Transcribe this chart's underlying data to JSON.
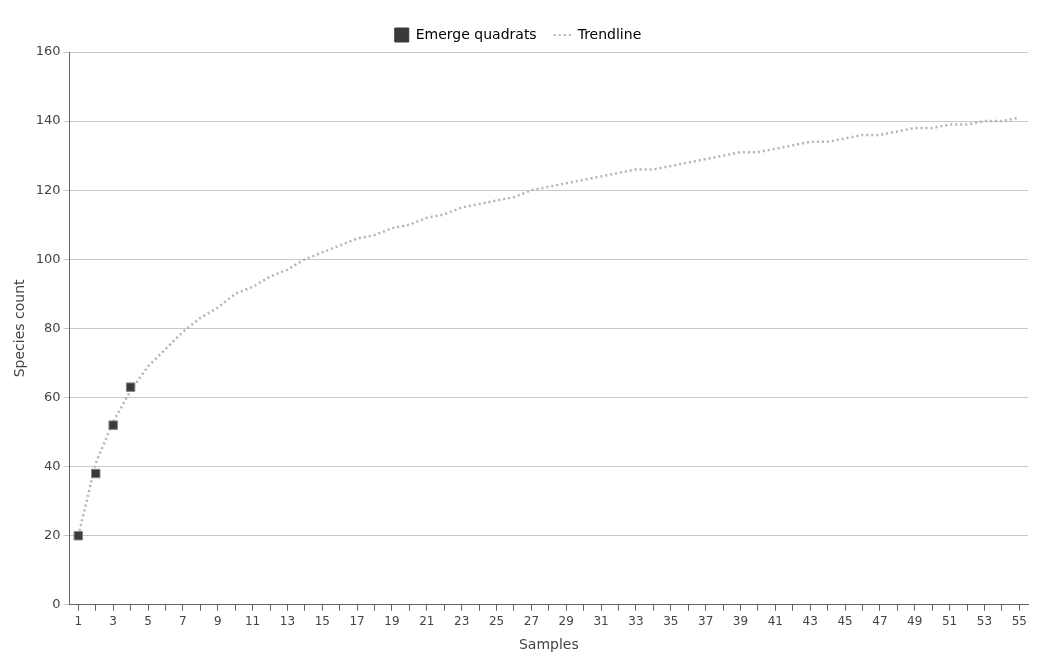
{
  "chart_data": {
    "type": "line",
    "xlabel": "Samples",
    "ylabel": "Species count",
    "x": [
      1,
      2,
      3,
      4,
      5,
      6,
      7,
      8,
      9,
      10,
      11,
      12,
      13,
      14,
      15,
      16,
      17,
      18,
      19,
      20,
      21,
      22,
      23,
      24,
      25,
      26,
      27,
      28,
      29,
      30,
      31,
      32,
      33,
      34,
      35,
      36,
      37,
      38,
      39,
      40,
      41,
      42,
      43,
      44,
      45,
      46,
      47,
      48,
      49,
      50,
      51,
      52,
      53,
      54,
      55
    ],
    "xlim": [
      0.5,
      55.5
    ],
    "xticks": [
      1,
      {
        "value": 2,
        "label": null
      },
      3,
      {
        "value": 4,
        "label": null
      },
      5,
      {
        "value": 6,
        "label": null
      },
      7,
      {
        "value": 8,
        "label": null
      },
      9,
      {
        "value": 10,
        "label": null
      },
      11,
      {
        "value": 12,
        "label": null
      },
      13,
      {
        "value": 14,
        "label": null
      },
      15,
      {
        "value": 16,
        "label": null
      },
      17,
      {
        "value": 18,
        "label": null
      },
      19,
      {
        "value": 20,
        "label": null
      },
      21,
      {
        "value": 22,
        "label": null
      },
      23,
      {
        "value": 24,
        "label": null
      },
      25,
      {
        "value": 26,
        "label": null
      },
      27,
      {
        "value": 28,
        "label": null
      },
      29,
      {
        "value": 30,
        "label": null
      },
      31,
      {
        "value": 32,
        "label": null
      },
      33,
      {
        "value": 34,
        "label": null
      },
      35,
      {
        "value": 36,
        "label": null
      },
      37,
      {
        "value": 38,
        "label": null
      },
      39,
      {
        "value": 40,
        "label": null
      },
      41,
      {
        "value": 42,
        "label": null
      },
      43,
      {
        "value": 44,
        "label": null
      },
      45,
      {
        "value": 46,
        "label": null
      },
      47,
      {
        "value": 48,
        "label": null
      },
      49,
      {
        "value": 50,
        "label": null
      },
      51,
      {
        "value": 52,
        "label": null
      },
      53,
      {
        "value": 54,
        "label": null
      },
      55
    ],
    "ylim": [
      0,
      160
    ],
    "yticks": [
      0,
      20,
      40,
      60,
      80,
      100,
      120,
      140,
      160
    ],
    "grid": "y",
    "legend": "top",
    "series": [
      {
        "name": "Emerge quadrats",
        "type": "scatter",
        "marker": "square",
        "color": "#3a3a3a",
        "x": [
          1,
          2,
          3,
          4
        ],
        "values": [
          20,
          38,
          52,
          63
        ]
      },
      {
        "name": "Trendline",
        "marker": "none",
        "line_style": "dotted",
        "color": "#b4b4b4",
        "values": [
          20,
          41,
          53,
          62,
          69,
          74,
          79,
          83,
          86,
          90,
          92,
          95,
          97,
          100,
          102,
          104,
          106,
          107,
          109,
          110,
          112,
          113,
          115,
          116,
          117,
          118,
          120,
          121,
          122,
          123,
          124,
          125,
          126,
          126,
          127,
          128,
          129,
          130,
          131,
          131,
          132,
          133,
          134,
          134,
          135,
          136,
          136,
          137,
          138,
          138,
          139,
          139,
          140,
          140,
          141
        ]
      }
    ]
  }
}
